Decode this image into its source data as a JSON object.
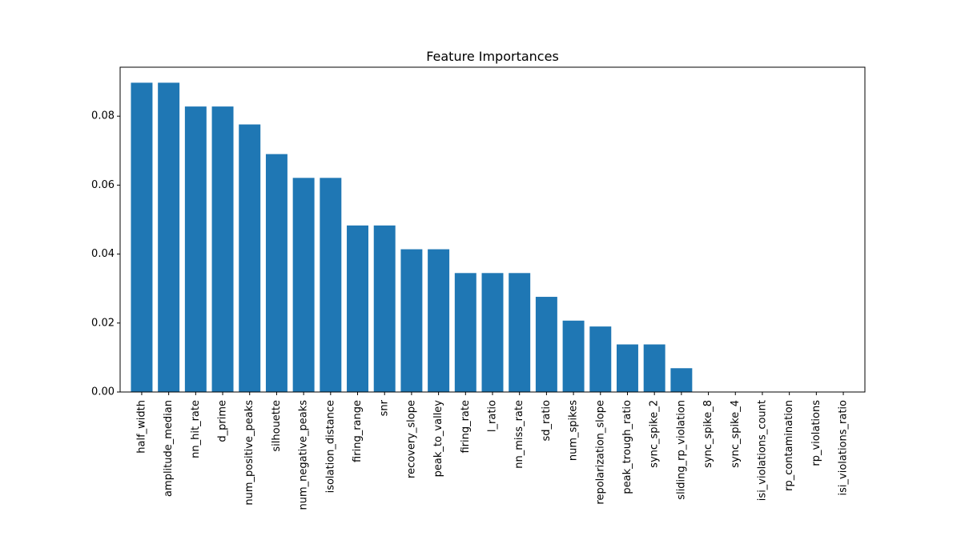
{
  "chart_data": {
    "type": "bar",
    "title": "Feature Importances",
    "xlabel": "",
    "ylabel": "",
    "bar_color": "#1f77b4",
    "ylim": [
      0,
      0.0942
    ],
    "yticks": [
      0.0,
      0.02,
      0.04,
      0.06,
      0.08
    ],
    "ytick_labels": [
      "0.00",
      "0.02",
      "0.04",
      "0.06",
      "0.08"
    ],
    "grid": false,
    "categories": [
      "half_width",
      "amplitude_median",
      "nn_hit_rate",
      "d_prime",
      "num_positive_peaks",
      "silhouette",
      "num_negative_peaks",
      "isolation_distance",
      "firing_range",
      "snr",
      "recovery_slope",
      "peak_to_valley",
      "firing_rate",
      "l_ratio",
      "nn_miss_rate",
      "sd_ratio",
      "num_spikes",
      "repolarization_slope",
      "peak_trough_ratio",
      "sync_spike_2",
      "sliding_rp_violation",
      "sync_spike_8",
      "sync_spike_4",
      "isi_violations_count",
      "rp_contamination",
      "rp_violations",
      "isi_violations_ratio"
    ],
    "values": [
      0.0897,
      0.0897,
      0.0828,
      0.0828,
      0.0776,
      0.069,
      0.0621,
      0.0621,
      0.0483,
      0.0483,
      0.0414,
      0.0414,
      0.0345,
      0.0345,
      0.0345,
      0.0276,
      0.0207,
      0.019,
      0.0138,
      0.0138,
      0.0069,
      0.0,
      0.0,
      0.0,
      0.0,
      0.0,
      0.0
    ]
  }
}
